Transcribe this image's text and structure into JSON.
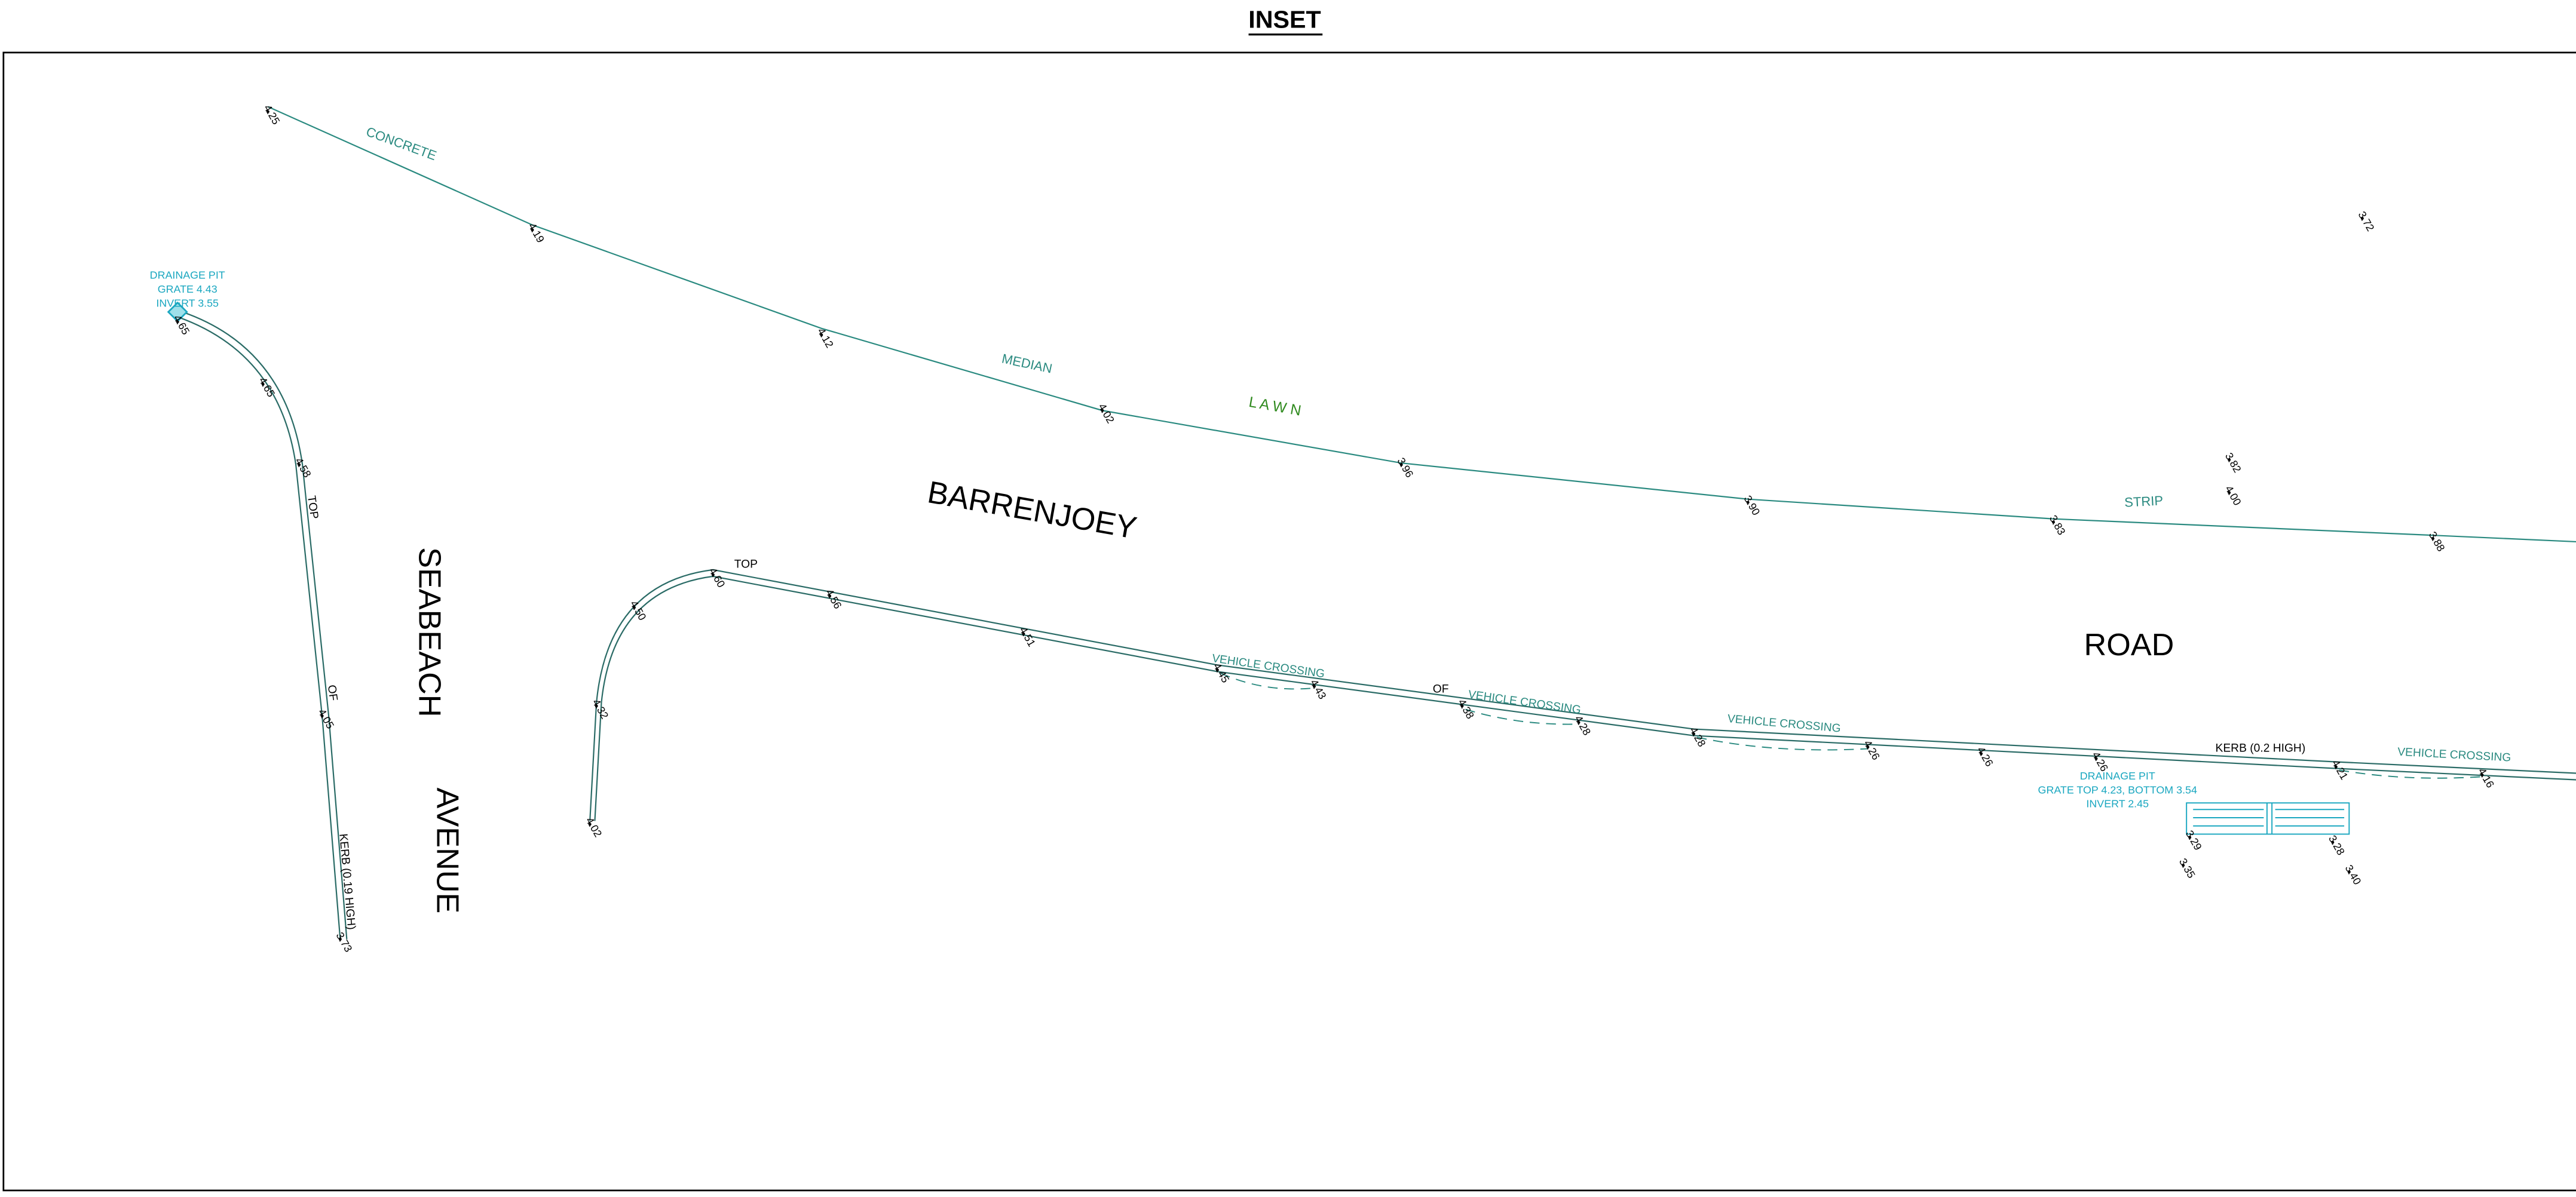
{
  "title": "INSET",
  "labels": [
    "CONCRETE",
    "MEDIAN",
    "L A W N",
    "STRIP",
    "BARRENJOEY",
    "ROAD",
    "SEABEACH",
    "AVENUE",
    "TOP",
    "OF",
    "KERB (0.19 HIGH)",
    "TOP",
    "OF",
    "KERB (0.2 HIGH)",
    "VEHICLE CROSSING",
    "VEHICLE CROSSING",
    "VEHICLE CROSSING",
    "VEHICLE CROSSING"
  ],
  "drainage_pits": [
    [
      "DRAINAGE PIT",
      "GRATE 4.43",
      "INVERT 3.55"
    ],
    [
      "DRAINAGE PIT",
      "GRATE TOP 4.23, BOTTOM 3.54",
      "INVERT 2.45"
    ]
  ],
  "spot_levels": [
    "4.25",
    "4.19",
    "4.12",
    "4.02",
    "3.96",
    "3.90",
    "3.83",
    "3.88",
    "3.72",
    "3.82",
    "4.00",
    "4.65",
    "4.65",
    "4.58",
    "4.05",
    "3.73",
    "4.02",
    "4.32",
    "4.50",
    "4.60",
    "4.56",
    "4.51",
    "4.45",
    "4.43",
    "4.38",
    "4.28",
    "4.28",
    "4.26",
    "4.26",
    "4.26",
    "4.21",
    "4.16",
    "3.29",
    "3.35",
    "3.28",
    "3.40"
  ]
}
